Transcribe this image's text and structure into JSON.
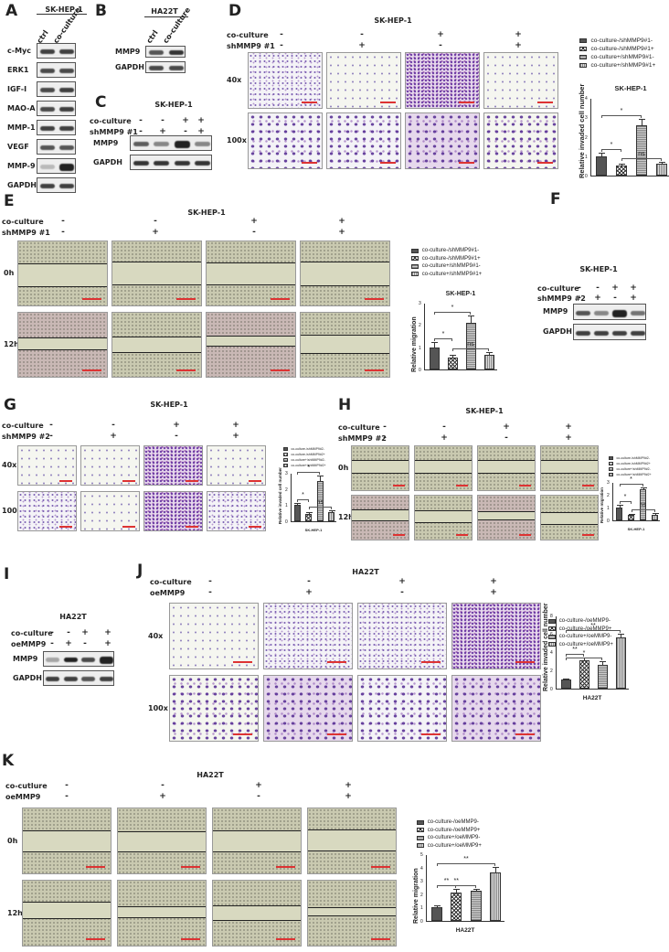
{
  "panels": {
    "A": {
      "label": "A",
      "cell_line": "SK-HEP-1",
      "columns": [
        "ctrl",
        "co-culture"
      ],
      "rows": [
        "c-Myc",
        "ERK1",
        "IGF-I",
        "MAO-A",
        "MMP-1",
        "VEGF",
        "MMP-9",
        "GAPDH"
      ]
    },
    "B": {
      "label": "B",
      "cell_line": "HA22T",
      "columns": [
        "ctrl",
        "co-culture"
      ],
      "rows": [
        "MMP9",
        "GAPDH"
      ]
    },
    "C": {
      "label": "C",
      "cell_line": "SK-HEP-1",
      "conditions": [
        {
          "name": "co-culture",
          "values": [
            "-",
            "-",
            "+",
            "+"
          ]
        },
        {
          "name": "shMMP9 #1",
          "values": [
            "-",
            "+",
            "-",
            "+"
          ]
        }
      ],
      "rows": [
        "MMP9",
        "GAPDH"
      ]
    },
    "D": {
      "label": "D",
      "cell_line": "SK-HEP-1",
      "conditions": [
        {
          "name": "co-culture",
          "values": [
            "-",
            "-",
            "+",
            "+"
          ]
        },
        {
          "name": "shMMP9 #1",
          "values": [
            "-",
            "+",
            "-",
            "+"
          ]
        }
      ],
      "row_labels": [
        "40x",
        "100x"
      ]
    },
    "E": {
      "label": "E",
      "cell_line": "SK-HEP-1",
      "conditions": [
        {
          "name": "co-culture",
          "values": [
            "-",
            "-",
            "+",
            "+"
          ]
        },
        {
          "name": "shMMP9 #1",
          "values": [
            "-",
            "+",
            "-",
            "+"
          ]
        }
      ],
      "row_labels": [
        "0h",
        "12h"
      ]
    },
    "F": {
      "label": "F",
      "cell_line": "SK-HEP-1",
      "conditions": [
        {
          "name": "co-culture",
          "values": [
            "-",
            "-",
            "+",
            "+"
          ]
        },
        {
          "name": "shMMP9 #2",
          "values": [
            "-",
            "+",
            "-",
            "+"
          ]
        }
      ],
      "rows": [
        "MMP9",
        "GAPDH"
      ]
    },
    "G": {
      "label": "G",
      "cell_line": "SK-HEP-1",
      "conditions": [
        {
          "name": "co-culture",
          "values": [
            "-",
            "-",
            "+",
            "+"
          ]
        },
        {
          "name": "shMMP9 #2",
          "values": [
            "-",
            "+",
            "-",
            "+"
          ]
        }
      ],
      "row_labels": [
        "40x",
        "100x"
      ]
    },
    "H": {
      "label": "H",
      "cell_line": "SK-HEP-1",
      "conditions": [
        {
          "name": "co-culture",
          "values": [
            "-",
            "-",
            "+",
            "+"
          ]
        },
        {
          "name": "shMMP9 #2",
          "values": [
            "-",
            "+",
            "-",
            "+"
          ]
        }
      ],
      "row_labels": [
        "0h",
        "12h"
      ]
    },
    "I": {
      "label": "I",
      "cell_line": "HA22T",
      "conditions": [
        {
          "name": "co-culture",
          "values": [
            "-",
            "-",
            "+",
            "+"
          ]
        },
        {
          "name": "oeMMP9",
          "values": [
            "-",
            "+",
            "-",
            "+"
          ]
        }
      ],
      "rows": [
        "MMP9",
        "GAPDH"
      ]
    },
    "J": {
      "label": "J",
      "cell_line": "HA22T",
      "conditions": [
        {
          "name": "co-culture",
          "values": [
            "-",
            "-",
            "+",
            "+"
          ]
        },
        {
          "name": "oeMMP9",
          "values": [
            "-",
            "+",
            "-",
            "+"
          ]
        }
      ],
      "row_labels": [
        "40x",
        "100x"
      ]
    },
    "K": {
      "label": "K",
      "cell_line": "HA22T",
      "conditions": [
        {
          "name": "co-cutlure",
          "values": [
            "-",
            "-",
            "+",
            "+"
          ]
        },
        {
          "name": "oeMMP9",
          "values": [
            "-",
            "+",
            "-",
            "+"
          ]
        }
      ],
      "row_labels": [
        "0h",
        "12h"
      ]
    }
  },
  "chart_data": [
    {
      "panel": "D",
      "type": "bar",
      "title": "SK-HEP-1",
      "xlabel": "",
      "ylabel": "Relative invaded cell number",
      "ylim": [
        0,
        4
      ],
      "yticks": [
        "0",
        "1",
        "2",
        "3",
        "4"
      ],
      "categories": [
        "co-culture-/shMMP9#1-",
        "co-culture-/shMMP9#1+",
        "co-culture+/shMMP9#1-",
        "co-culture+/shMMP9#1+"
      ],
      "values": [
        1.0,
        0.5,
        2.6,
        0.6
      ],
      "errors": [
        0.12,
        0.05,
        0.28,
        0.08
      ],
      "significance": [
        {
          "from": 0,
          "to": 1,
          "label": "*"
        },
        {
          "from": 0,
          "to": 2,
          "label": "*"
        },
        {
          "from": 1,
          "to": 3,
          "label": "ns"
        }
      ],
      "legend_position": "top"
    },
    {
      "panel": "E",
      "type": "bar",
      "title": "SK-HEP-1",
      "xlabel": "",
      "ylabel": "Relative migration",
      "ylim": [
        0,
        3
      ],
      "yticks": [
        "0",
        "1",
        "2",
        "3"
      ],
      "categories": [
        "co-culture-/shMMP9#1-",
        "co-culture-/shMMP9#1+",
        "co-culture+/shMMP9#1-",
        "co-culture+/shMMP9#1+"
      ],
      "values": [
        1.0,
        0.55,
        2.1,
        0.65
      ],
      "errors": [
        0.2,
        0.05,
        0.3,
        0.08
      ],
      "significance": [
        {
          "from": 0,
          "to": 1,
          "label": "*"
        },
        {
          "from": 0,
          "to": 2,
          "label": "*"
        },
        {
          "from": 1,
          "to": 3,
          "label": "ns"
        }
      ],
      "legend_position": "top"
    },
    {
      "panel": "G",
      "type": "bar",
      "title": "",
      "xlabel": "SK-HEP-1",
      "ylabel": "Relative invaded cell number",
      "ylim": [
        0,
        3
      ],
      "yticks": [
        "0",
        "1",
        "2",
        "3"
      ],
      "categories": [
        "co-culture-/shMMP9#2-",
        "co-culture-/shMMP9#2+",
        "co-culture+/shMMP9#2-",
        "co-culture+/shMMP9#2+"
      ],
      "values": [
        1.0,
        0.45,
        2.5,
        0.55
      ],
      "errors": [
        0.1,
        0.05,
        0.3,
        0.05
      ],
      "significance": [
        {
          "from": 0,
          "to": 1,
          "label": "*"
        },
        {
          "from": 0,
          "to": 2,
          "label": "*"
        },
        {
          "from": 1,
          "to": 3,
          "label": "ns"
        }
      ],
      "legend_position": "top"
    },
    {
      "panel": "H",
      "type": "bar",
      "title": "",
      "xlabel": "SK-HEP-1",
      "ylabel": "Relative migration",
      "ylim": [
        0,
        3
      ],
      "yticks": [
        "0",
        "1",
        "2",
        "3"
      ],
      "categories": [
        "co-culture-/shMMP9#2-",
        "co-culture-/shMMP9#2+",
        "co-culture+/shMMP9#2-",
        "co-culture+/shMMP9#2+"
      ],
      "values": [
        1.0,
        0.4,
        2.4,
        0.45
      ],
      "errors": [
        0.12,
        0.03,
        0.08,
        0.05
      ],
      "significance": [
        {
          "from": 0,
          "to": 1,
          "label": "*"
        },
        {
          "from": 0,
          "to": 2,
          "label": "*"
        },
        {
          "from": 1,
          "to": 3,
          "label": "ns"
        }
      ],
      "legend_position": "top"
    },
    {
      "panel": "J",
      "type": "bar",
      "title": "",
      "xlabel": "HA22T",
      "ylabel": "Relative invaded cell number",
      "ylim": [
        0,
        8
      ],
      "yticks": [
        "0",
        "2",
        "4",
        "6",
        "8"
      ],
      "categories": [
        "co-culture-/oeMMP9-",
        "co-culture-/oeMMP9+",
        "co-culture+/oeMMP9-",
        "co-culture+/oeMMP9+"
      ],
      "values": [
        1.0,
        3.1,
        2.6,
        5.6
      ],
      "errors": [
        0.05,
        0.25,
        0.3,
        0.35
      ],
      "significance": [
        {
          "from": 0,
          "to": 1,
          "label": "**"
        },
        {
          "from": 0,
          "to": 2,
          "label": "*"
        },
        {
          "from": 0,
          "to": 3,
          "label": "**"
        }
      ],
      "legend_position": "top"
    },
    {
      "panel": "K",
      "type": "bar",
      "title": "",
      "xlabel": "HA22T",
      "ylabel": "Relative migration",
      "ylim": [
        0,
        5
      ],
      "yticks": [
        "0",
        "1",
        "2",
        "3",
        "4",
        "5"
      ],
      "categories": [
        "co-culture-/oeMMP9-",
        "co-culture-/oeMMP9+",
        "co-culture+/oeMMP9-",
        "co-culture+/oeMMP9+"
      ],
      "values": [
        1.0,
        2.15,
        2.25,
        3.6
      ],
      "errors": [
        0.08,
        0.15,
        0.1,
        0.4
      ],
      "significance": [
        {
          "from": 0,
          "to": 1,
          "label": "**"
        },
        {
          "from": 0,
          "to": 2,
          "label": "**"
        },
        {
          "from": 0,
          "to": 3,
          "label": "**"
        }
      ],
      "legend_position": "top"
    }
  ]
}
